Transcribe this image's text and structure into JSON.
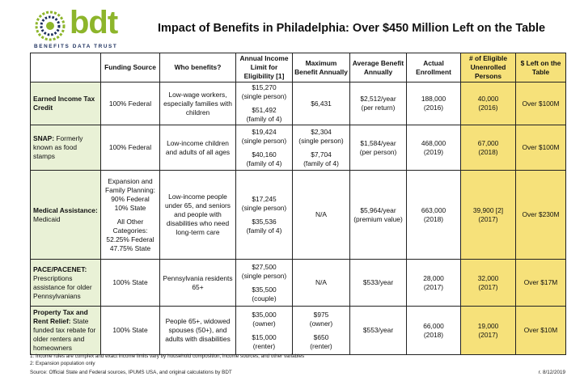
{
  "org": {
    "logo_text": "bdt",
    "logo_subtitle": "BENEFITS DATA TRUST"
  },
  "title": "Impact of Benefits in Philadelphia: Over $450 Million Left on the Table",
  "headers": [
    "",
    "Funding Source",
    "Who benefits?",
    "Annual Income Limit for Eligibility [1]",
    "Maximum Benefit Annually",
    "Average Benefit Annually",
    "Actual Enrollment",
    "# of Eligible Unenrolled Persons",
    "$ Left on the Table"
  ],
  "rows": [
    {
      "program_bold": "Earned Income Tax Credit",
      "program_rest": "",
      "funding": "100% Federal",
      "who": "Low-wage workers, especially families with children",
      "limit_a": "$15,270",
      "limit_a_note": "(single person)",
      "limit_b": "$51,492",
      "limit_b_note": "(family of 4)",
      "max_a": "$6,431",
      "max_a_note": "",
      "max_b": "",
      "max_b_note": "",
      "avg": "$2,512/year",
      "avg_note": "(per return)",
      "enroll": "188,000",
      "enroll_year": "(2016)",
      "unenrolled": "40,000",
      "unenrolled_year": "(2016)",
      "left": "Over $100M"
    },
    {
      "program_bold": "SNAP:",
      "program_rest": " Formerly known as food stamps",
      "funding": "100% Federal",
      "who": "Low-income children and adults of all ages",
      "limit_a": "$19,424",
      "limit_a_note": "(single person)",
      "limit_b": "$40,160",
      "limit_b_note": "(family of 4)",
      "max_a": "$2,304",
      "max_a_note": "(single person)",
      "max_b": "$7,704",
      "max_b_note": "(family of 4)",
      "avg": "$1,584/year",
      "avg_note": "(per person)",
      "enroll": "468,000",
      "enroll_year": "(2019)",
      "unenrolled": "67,000",
      "unenrolled_year": "(2018)",
      "left": "Over $100M"
    },
    {
      "program_bold": "Medical Assistance:",
      "program_rest": " Medicaid",
      "funding_lines": [
        "Expansion and",
        "Family Planning:",
        "90% Federal",
        "10% State",
        "",
        "All Other",
        "Categories:",
        "52.25% Federal",
        "47.75% State"
      ],
      "who": "Low-income people under 65, and seniors and people with disabilities who need long-term care",
      "limit_a": "$17,245",
      "limit_a_note": "(single person)",
      "limit_b": "$35,536",
      "limit_b_note": "(family of 4)",
      "max_a": "N/A",
      "max_a_note": "",
      "max_b": "",
      "max_b_note": "",
      "avg": "$5,964/year",
      "avg_note": "(premium value)",
      "enroll": "663,000",
      "enroll_year": "(2018)",
      "unenrolled": "39,900 [2]",
      "unenrolled_year": "(2017)",
      "left": "Over $230M"
    },
    {
      "program_bold": "PACE/PACENET:",
      "program_rest": " Prescriptions assistance for older Pennsylvanians",
      "funding": "100% State",
      "who": "Pennsylvania residents 65+",
      "limit_a": "$27,500",
      "limit_a_note": "(single person)",
      "limit_b": "$35,500",
      "limit_b_note": "(couple)",
      "max_a": "N/A",
      "max_a_note": "",
      "max_b": "",
      "max_b_note": "",
      "avg": "$533/year",
      "avg_note": "",
      "enroll": "28,000",
      "enroll_year": "(2017)",
      "unenrolled": "32,000",
      "unenrolled_year": "(2017)",
      "left": "Over $17M"
    },
    {
      "program_bold": "Property Tax and Rent Relief:",
      "program_rest": " State funded tax rebate for older renters and homeowners",
      "funding": "100% State",
      "who": "People 65+, widowed spouses (50+), and adults with disabilities",
      "limit_a": "$35,000",
      "limit_a_note": "(owner)",
      "limit_b": "$15,000",
      "limit_b_note": "(renter)",
      "max_a": "$975",
      "max_a_note": "(owner)",
      "max_b": "$650",
      "max_b_note": "(renter)",
      "avg": "$553/year",
      "avg_note": "",
      "enroll": "66,000",
      "enroll_year": "(2018)",
      "unenrolled": "19,000",
      "unenrolled_year": "(2017)",
      "left": "Over $10M"
    }
  ],
  "footnotes": [
    "1: Income rules are complex and exact income limits vary by household composition, income sources, and other variables",
    "2: Expansion population only",
    "Source: Official State and Federal sources, IPUMS USA, and original calculations by BDT"
  ],
  "revision": "r. 8/12/2019",
  "colors": {
    "program_col": "#E9F1D6",
    "highlight": "#F6E17A",
    "logo_green": "#8DB52B",
    "logo_navy": "#1C2F5E"
  }
}
